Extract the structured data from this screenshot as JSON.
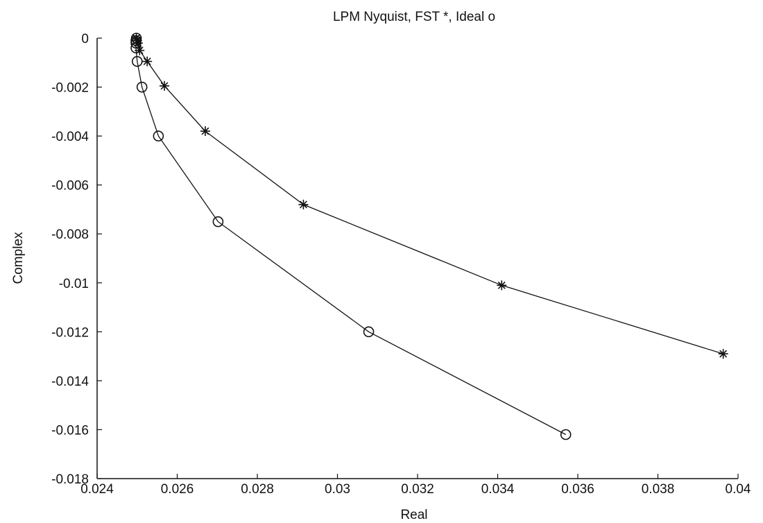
{
  "chart_data": {
    "type": "line",
    "title": "LPM Nyquist, FST *, Ideal o",
    "xlabel": "Real",
    "ylabel": "Complex",
    "xlim": [
      0.024,
      0.04
    ],
    "ylim": [
      -0.018,
      0
    ],
    "xticks": [
      0.024,
      0.026,
      0.028,
      0.03,
      0.032,
      0.034,
      0.036,
      0.038,
      0.04
    ],
    "xtick_labels": [
      "0.024",
      "0.026",
      "0.028",
      "0.03",
      "0.032",
      "0.034",
      "0.036",
      "0.038",
      "0.04"
    ],
    "yticks": [
      0,
      -0.002,
      -0.004,
      -0.006,
      -0.008,
      -0.01,
      -0.012,
      -0.014,
      -0.016,
      -0.018
    ],
    "ytick_labels": [
      "0",
      "-0.002",
      "-0.004",
      "-0.006",
      "-0.008",
      "-0.01",
      "-0.012",
      "-0.014",
      "-0.016",
      "-0.018"
    ],
    "grid": false,
    "legend": "none",
    "series": [
      {
        "marker": "star",
        "color": "#111111",
        "points": [
          [
            0.02498,
            0.0
          ],
          [
            0.025,
            -0.0001
          ],
          [
            0.02502,
            -0.0002
          ],
          [
            0.02506,
            -0.0005
          ],
          [
            0.02525,
            -0.00095
          ],
          [
            0.02568,
            -0.00195
          ],
          [
            0.0267,
            -0.0038
          ],
          [
            0.02915,
            -0.0068
          ],
          [
            0.0341,
            -0.0101
          ],
          [
            0.03963,
            -0.0129
          ]
        ]
      },
      {
        "marker": "circle",
        "color": "#111111",
        "points": [
          [
            0.02498,
            0.0
          ],
          [
            0.02497,
            -0.0001
          ],
          [
            0.02497,
            -0.0002
          ],
          [
            0.02497,
            -0.0004
          ],
          [
            0.025,
            -0.00095
          ],
          [
            0.02512,
            -0.002
          ],
          [
            0.02553,
            -0.004
          ],
          [
            0.02702,
            -0.0075
          ],
          [
            0.03078,
            -0.012
          ],
          [
            0.0357,
            -0.0162
          ]
        ]
      }
    ]
  }
}
